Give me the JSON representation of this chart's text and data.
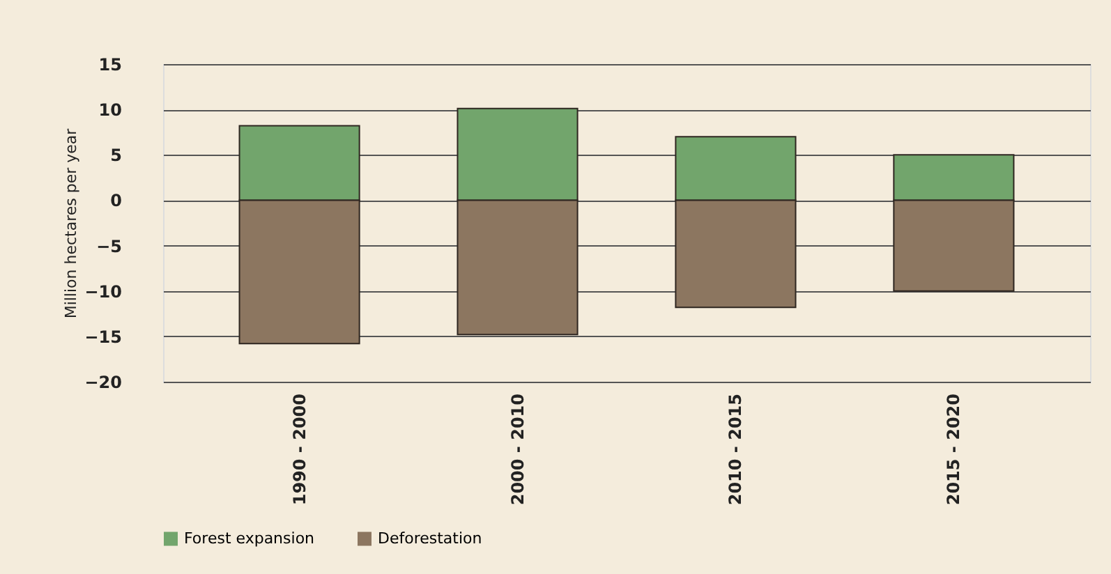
{
  "chart_data": {
    "type": "bar",
    "stacked": true,
    "categories": [
      "1990 - 2000",
      "2000 - 2010",
      "2010 - 2015",
      "2015 - 2020"
    ],
    "series": [
      {
        "name": "Forest expansion",
        "color": "#72a56c",
        "values": [
          8.2,
          10.1,
          7.0,
          5.0
        ]
      },
      {
        "name": "Deforestation",
        "color": "#8c7660",
        "values": [
          -15.8,
          -14.8,
          -11.8,
          -10.0
        ]
      }
    ],
    "ylabel": "Million hectares per year",
    "ylim": [
      -20,
      15
    ],
    "yticks": [
      -20,
      -15,
      -10,
      -5,
      0,
      5,
      10,
      15
    ],
    "grid": "y",
    "legend": "bottom"
  }
}
